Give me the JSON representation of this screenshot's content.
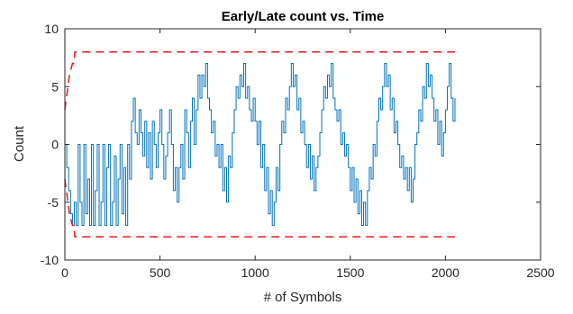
{
  "chart_data": {
    "type": "line",
    "title": "Early/Late count vs. Time",
    "xlabel": "# of Symbols",
    "ylabel": "Count",
    "xlim": [
      0,
      2500
    ],
    "ylim": [
      -10,
      10
    ],
    "xticks": [
      0,
      500,
      1000,
      1500,
      2000,
      2500
    ],
    "yticks": [
      -10,
      -5,
      0,
      5,
      10
    ],
    "grid": false,
    "legend": "none",
    "series": [
      {
        "style": "solid",
        "color": "#0072BD",
        "points": [
          [
            0,
            0
          ],
          [
            10,
            -2
          ],
          [
            20,
            -4
          ],
          [
            30,
            -6
          ],
          [
            40,
            -7
          ],
          [
            50,
            -5
          ],
          [
            60,
            -7
          ],
          [
            70,
            0
          ],
          [
            80,
            -5
          ],
          [
            90,
            -7
          ],
          [
            100,
            0
          ],
          [
            110,
            -6
          ],
          [
            120,
            -3
          ],
          [
            130,
            -7
          ],
          [
            140,
            0
          ],
          [
            150,
            -7
          ],
          [
            160,
            -4
          ],
          [
            170,
            0
          ],
          [
            180,
            -7
          ],
          [
            190,
            -5
          ],
          [
            200,
            0
          ],
          [
            210,
            -7
          ],
          [
            220,
            -2
          ],
          [
            230,
            0
          ],
          [
            240,
            -7
          ],
          [
            250,
            -5
          ],
          [
            260,
            -1
          ],
          [
            270,
            -7
          ],
          [
            280,
            -3
          ],
          [
            290,
            0
          ],
          [
            300,
            -6
          ],
          [
            310,
            -2
          ],
          [
            320,
            -7
          ],
          [
            330,
            0
          ],
          [
            340,
            -3
          ],
          [
            350,
            2
          ],
          [
            360,
            4
          ],
          [
            370,
            1
          ],
          [
            380,
            0
          ],
          [
            390,
            3
          ],
          [
            400,
            1
          ],
          [
            410,
            -1
          ],
          [
            420,
            2
          ],
          [
            430,
            -2
          ],
          [
            440,
            1
          ],
          [
            450,
            -3
          ],
          [
            460,
            2
          ],
          [
            470,
            0
          ],
          [
            480,
            -2
          ],
          [
            490,
            1
          ],
          [
            500,
            3
          ],
          [
            510,
            0
          ],
          [
            520,
            -3
          ],
          [
            530,
            -1
          ],
          [
            540,
            1
          ],
          [
            550,
            3
          ],
          [
            560,
            0
          ],
          [
            570,
            -4
          ],
          [
            580,
            -2
          ],
          [
            590,
            -5
          ],
          [
            600,
            -2
          ],
          [
            610,
            0
          ],
          [
            620,
            -3
          ],
          [
            630,
            3
          ],
          [
            640,
            1
          ],
          [
            650,
            -2
          ],
          [
            660,
            2
          ],
          [
            670,
            4
          ],
          [
            680,
            0
          ],
          [
            690,
            3
          ],
          [
            700,
            6
          ],
          [
            710,
            4
          ],
          [
            720,
            6
          ],
          [
            730,
            5
          ],
          [
            740,
            7
          ],
          [
            750,
            4
          ],
          [
            760,
            3
          ],
          [
            770,
            1
          ],
          [
            780,
            2
          ],
          [
            790,
            -1
          ],
          [
            800,
            0
          ],
          [
            810,
            -2
          ],
          [
            820,
            0
          ],
          [
            830,
            -4
          ],
          [
            840,
            -2
          ],
          [
            850,
            -5
          ],
          [
            860,
            -1
          ],
          [
            870,
            -2
          ],
          [
            880,
            1
          ],
          [
            890,
            3
          ],
          [
            900,
            5
          ],
          [
            910,
            4
          ],
          [
            920,
            6
          ],
          [
            930,
            5
          ],
          [
            940,
            7
          ],
          [
            950,
            4
          ],
          [
            960,
            5
          ],
          [
            970,
            3
          ],
          [
            980,
            2
          ],
          [
            990,
            4
          ],
          [
            1000,
            2
          ],
          [
            1010,
            0
          ],
          [
            1020,
            2
          ],
          [
            1030,
            -2
          ],
          [
            1040,
            0
          ],
          [
            1050,
            -4
          ],
          [
            1060,
            -2
          ],
          [
            1070,
            -6
          ],
          [
            1080,
            -4
          ],
          [
            1090,
            -7
          ],
          [
            1100,
            -5
          ],
          [
            1110,
            -2
          ],
          [
            1120,
            -4
          ],
          [
            1130,
            0
          ],
          [
            1140,
            2
          ],
          [
            1150,
            1
          ],
          [
            1160,
            4
          ],
          [
            1170,
            3
          ],
          [
            1180,
            5
          ],
          [
            1190,
            7
          ],
          [
            1200,
            5
          ],
          [
            1210,
            6
          ],
          [
            1220,
            3
          ],
          [
            1230,
            4
          ],
          [
            1240,
            1
          ],
          [
            1250,
            2
          ],
          [
            1260,
            0
          ],
          [
            1270,
            -2
          ],
          [
            1280,
            0
          ],
          [
            1290,
            -3
          ],
          [
            1300,
            -1
          ],
          [
            1310,
            -4
          ],
          [
            1320,
            -2
          ],
          [
            1330,
            -1
          ],
          [
            1340,
            1
          ],
          [
            1350,
            3
          ],
          [
            1360,
            5
          ],
          [
            1370,
            4
          ],
          [
            1380,
            6
          ],
          [
            1390,
            5
          ],
          [
            1400,
            7
          ],
          [
            1410,
            4
          ],
          [
            1420,
            3
          ],
          [
            1430,
            2
          ],
          [
            1440,
            3
          ],
          [
            1450,
            0
          ],
          [
            1460,
            1
          ],
          [
            1470,
            -1
          ],
          [
            1480,
            0
          ],
          [
            1490,
            -2
          ],
          [
            1500,
            -4
          ],
          [
            1510,
            -2
          ],
          [
            1520,
            -5
          ],
          [
            1530,
            -3
          ],
          [
            1540,
            -6
          ],
          [
            1550,
            -4
          ],
          [
            1560,
            -7
          ],
          [
            1570,
            -5
          ],
          [
            1580,
            -7
          ],
          [
            1590,
            -4
          ],
          [
            1600,
            -2
          ],
          [
            1610,
            -3
          ],
          [
            1620,
            0
          ],
          [
            1630,
            -1
          ],
          [
            1640,
            2
          ],
          [
            1650,
            4
          ],
          [
            1660,
            3
          ],
          [
            1670,
            5
          ],
          [
            1680,
            7
          ],
          [
            1690,
            5
          ],
          [
            1700,
            6
          ],
          [
            1710,
            3
          ],
          [
            1720,
            4
          ],
          [
            1730,
            1
          ],
          [
            1740,
            2
          ],
          [
            1750,
            0
          ],
          [
            1760,
            -2
          ],
          [
            1770,
            -1
          ],
          [
            1780,
            -3
          ],
          [
            1790,
            -2
          ],
          [
            1800,
            -4
          ],
          [
            1810,
            -2
          ],
          [
            1820,
            -5
          ],
          [
            1830,
            -3
          ],
          [
            1840,
            0
          ],
          [
            1850,
            1
          ],
          [
            1860,
            3
          ],
          [
            1870,
            2
          ],
          [
            1880,
            5
          ],
          [
            1890,
            4
          ],
          [
            1900,
            7
          ],
          [
            1910,
            5
          ],
          [
            1920,
            6
          ],
          [
            1930,
            4
          ],
          [
            1940,
            2
          ],
          [
            1950,
            3
          ],
          [
            1960,
            0
          ],
          [
            1970,
            2
          ],
          [
            1980,
            -1
          ],
          [
            1990,
            1
          ],
          [
            2000,
            3
          ],
          [
            2010,
            5
          ],
          [
            2020,
            7
          ],
          [
            2030,
            4
          ],
          [
            2040,
            2
          ],
          [
            2050,
            4
          ]
        ]
      },
      {
        "style": "dashed",
        "color": "#E8191B",
        "points": [
          [
            0,
            3
          ],
          [
            8,
            4
          ],
          [
            16,
            5
          ],
          [
            24,
            6
          ],
          [
            32,
            6.5
          ],
          [
            40,
            7
          ],
          [
            48,
            7
          ],
          [
            52,
            8
          ],
          [
            2050,
            8
          ]
        ]
      },
      {
        "style": "dashed",
        "color": "#E8191B",
        "points": [
          [
            0,
            -3
          ],
          [
            8,
            -4
          ],
          [
            16,
            -5
          ],
          [
            24,
            -6
          ],
          [
            32,
            -6.5
          ],
          [
            40,
            -7
          ],
          [
            48,
            -7
          ],
          [
            52,
            -8
          ],
          [
            2050,
            -8
          ]
        ]
      }
    ]
  }
}
